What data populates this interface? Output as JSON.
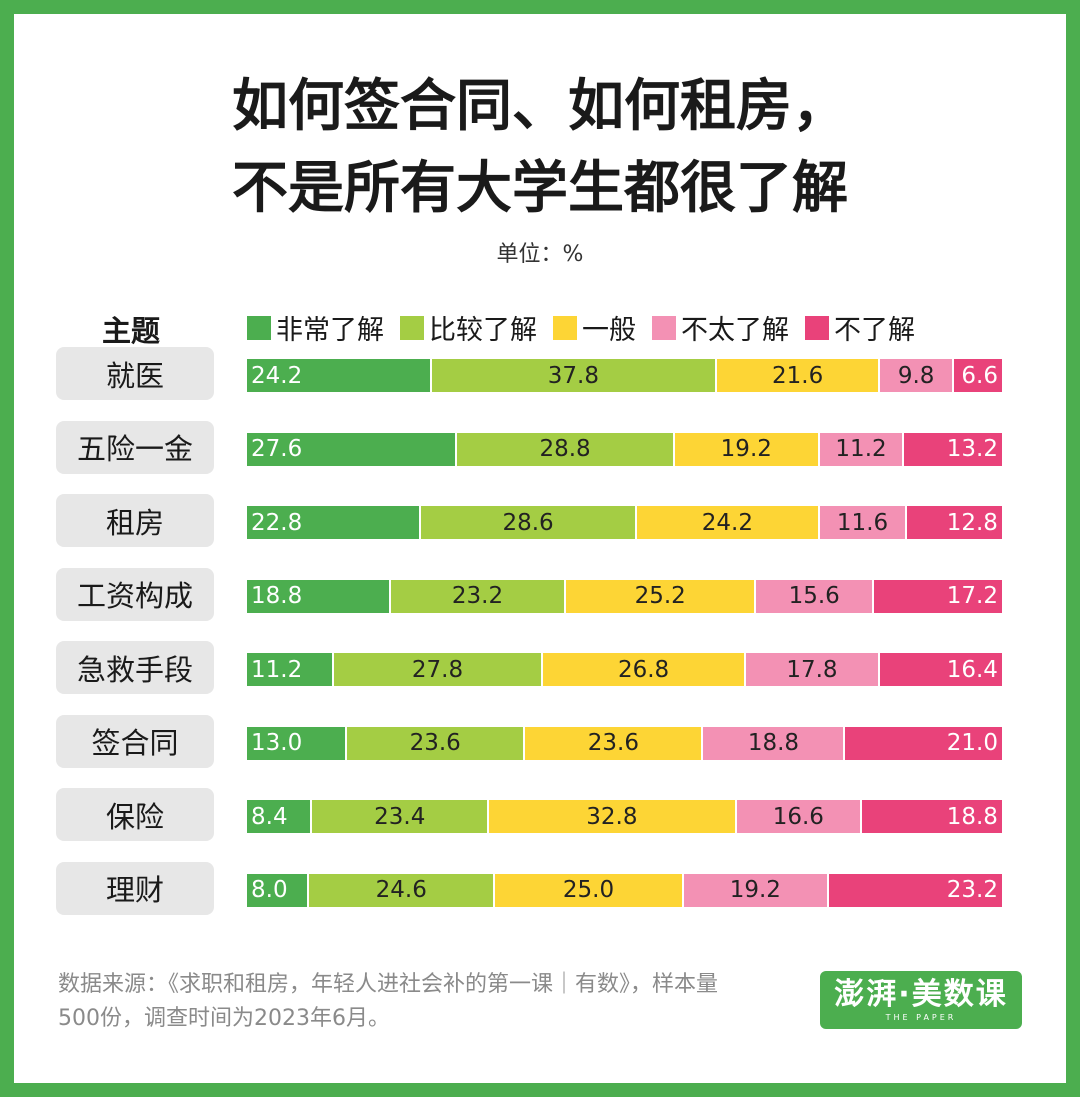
{
  "chart_data": {
    "type": "bar",
    "stacked": true,
    "orientation": "horizontal",
    "title_lines": [
      "如何签合同、如何租房，",
      "不是所有大学生都很了解"
    ],
    "unit": "单位：%",
    "category_header": "主题",
    "categories": [
      "就医",
      "五险一金",
      "租房",
      "工资构成",
      "急救手段",
      "签合同",
      "保险",
      "理财"
    ],
    "series": [
      {
        "name": "非常了解",
        "color": "#4cae4f",
        "values": [
          24.2,
          27.6,
          22.8,
          18.8,
          11.2,
          13.0,
          8.4,
          8.0
        ]
      },
      {
        "name": "比较了解",
        "color": "#a4cd44",
        "values": [
          37.8,
          28.8,
          28.6,
          23.2,
          27.8,
          23.6,
          23.4,
          24.6
        ]
      },
      {
        "name": "一般",
        "color": "#fdd535",
        "values": [
          21.6,
          19.2,
          24.2,
          25.2,
          26.8,
          23.6,
          32.8,
          25.0
        ]
      },
      {
        "name": "不太了解",
        "color": "#f391b4",
        "values": [
          9.8,
          11.2,
          11.6,
          15.6,
          17.8,
          18.8,
          16.6,
          19.2
        ]
      },
      {
        "name": "不了解",
        "color": "#e9427a",
        "values": [
          6.6,
          13.2,
          12.8,
          17.2,
          16.4,
          21.0,
          18.8,
          23.2
        ]
      }
    ],
    "legend_position": "top",
    "grid": false
  },
  "footer": {
    "source": "数据来源：《求职和租房，年轻人进社会补的第一课｜有数》，样本量500份，调查时间为2023年6月。"
  },
  "logo": {
    "text": "澎湃·美数课",
    "subtext": "THE PAPER"
  }
}
